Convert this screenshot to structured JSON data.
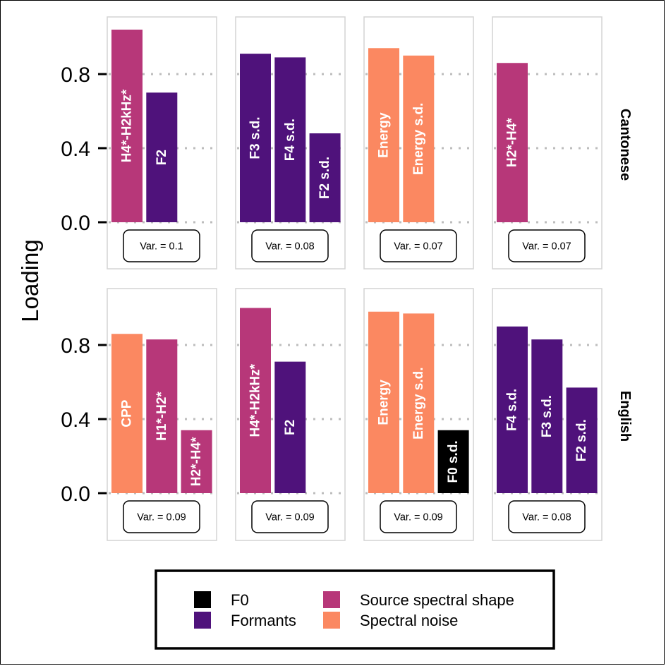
{
  "chart_data": {
    "type": "bar",
    "ylabel": "Loading",
    "ylim": [
      -0.25,
      1.09
    ],
    "yticks": [
      "0.0",
      "0.4",
      "0.8"
    ],
    "grid": "horizontal dotted",
    "legend_position": "bottom",
    "row_labels": [
      "Cantonese",
      "English"
    ],
    "category_colors": {
      "F0": "#000000",
      "Formants": "#4f127b",
      "Source spectral shape": "#b73779",
      "Spectral noise": "#fb8861"
    },
    "legend": [
      {
        "label": "F0",
        "category": "F0"
      },
      {
        "label": "Formants",
        "category": "Formants"
      },
      {
        "label": "Source spectral shape",
        "category": "Source spectral shape"
      },
      {
        "label": "Spectral noise",
        "category": "Spectral noise"
      }
    ],
    "panels": [
      {
        "language": "Cantonese",
        "variance_label": "Var. = 0.1",
        "bars": [
          {
            "label": "H4*-H2kHz*",
            "value": 1.04,
            "category": "Source spectral shape"
          },
          {
            "label": "F2",
            "value": 0.7,
            "category": "Formants"
          }
        ]
      },
      {
        "language": "Cantonese",
        "variance_label": "Var. = 0.08",
        "bars": [
          {
            "label": "F3 s.d.",
            "value": 0.91,
            "category": "Formants"
          },
          {
            "label": "F4 s.d.",
            "value": 0.89,
            "category": "Formants"
          },
          {
            "label": "F2 s.d.",
            "value": 0.48,
            "category": "Formants"
          }
        ]
      },
      {
        "language": "Cantonese",
        "variance_label": "Var. = 0.07",
        "bars": [
          {
            "label": "Energy",
            "value": 0.94,
            "category": "Spectral noise"
          },
          {
            "label": "Energy s.d.",
            "value": 0.9,
            "category": "Spectral noise"
          }
        ]
      },
      {
        "language": "Cantonese",
        "variance_label": "Var. = 0.07",
        "bars": [
          {
            "label": "H2*-H4*",
            "value": 0.86,
            "category": "Source spectral shape"
          }
        ]
      },
      {
        "language": "English",
        "variance_label": "Var. = 0.09",
        "bars": [
          {
            "label": "CPP",
            "value": 0.86,
            "category": "Spectral noise"
          },
          {
            "label": "H1*-H2*",
            "value": 0.83,
            "category": "Source spectral shape"
          },
          {
            "label": "H2*-H4*",
            "value": 0.34,
            "category": "Source spectral shape"
          }
        ]
      },
      {
        "language": "English",
        "variance_label": "Var. = 0.09",
        "bars": [
          {
            "label": "H4*-H2kHz*",
            "value": 1.0,
            "category": "Source spectral shape"
          },
          {
            "label": "F2",
            "value": 0.71,
            "category": "Formants"
          }
        ]
      },
      {
        "language": "English",
        "variance_label": "Var. = 0.09",
        "bars": [
          {
            "label": "Energy",
            "value": 0.98,
            "category": "Spectral noise"
          },
          {
            "label": "Energy s.d.",
            "value": 0.97,
            "category": "Spectral noise"
          },
          {
            "label": "F0 s.d.",
            "value": 0.34,
            "category": "F0"
          }
        ]
      },
      {
        "language": "English",
        "variance_label": "Var. = 0.08",
        "bars": [
          {
            "label": "F4 s.d.",
            "value": 0.9,
            "category": "Formants"
          },
          {
            "label": "F3 s.d.",
            "value": 0.83,
            "category": "Formants"
          },
          {
            "label": "F2 s.d.",
            "value": 0.57,
            "category": "Formants"
          }
        ]
      }
    ]
  }
}
